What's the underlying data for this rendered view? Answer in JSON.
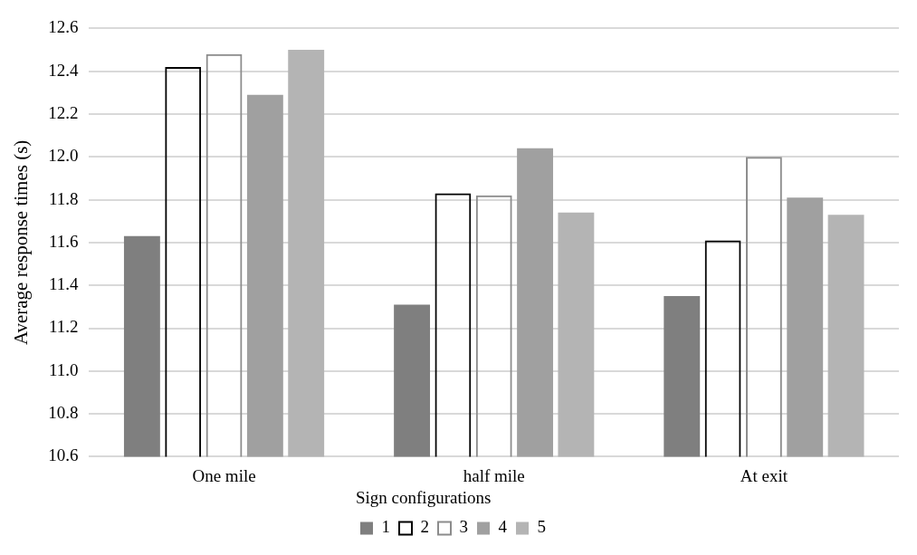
{
  "chart_data": {
    "type": "bar",
    "ylabel": "Average response times (s)",
    "legend_title": "Sign configurations",
    "categories": [
      "One mile",
      "half mile",
      "At exit"
    ],
    "series": [
      {
        "name": "1",
        "color": "#7f7f7f",
        "values": [
          11.63,
          11.31,
          11.35
        ]
      },
      {
        "name": "2",
        "color": "#000000",
        "values": [
          12.42,
          11.83,
          11.61
        ]
      },
      {
        "name": "3",
        "color": "#8c8c8c",
        "values": [
          12.48,
          11.82,
          12.0
        ]
      },
      {
        "name": "4",
        "color": "#a0a0a0",
        "values": [
          12.29,
          12.04,
          11.81
        ]
      },
      {
        "name": "5",
        "color": "#b4b4b4",
        "values": [
          12.5,
          11.74,
          11.73
        ]
      }
    ],
    "ylim": [
      10.6,
      12.6
    ],
    "yticks": [
      10.6,
      10.8,
      {
        "value": 11,
        "label": "11.0"
      },
      11.2,
      11.4,
      11.6,
      11.8,
      {
        "value": 12,
        "label": "12.0"
      },
      12.2,
      12.4,
      12.6
    ],
    "grid": "y",
    "legend": "bottom"
  }
}
